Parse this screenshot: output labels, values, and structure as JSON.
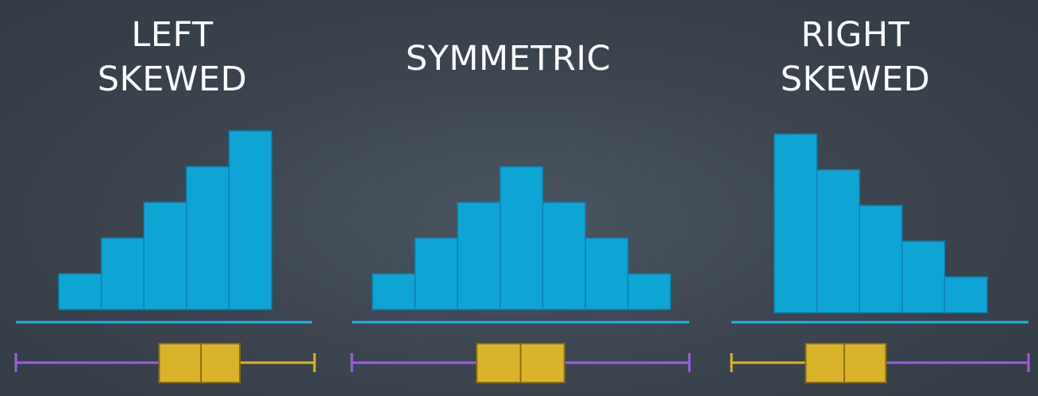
{
  "chart_data": [
    {
      "type": "bar",
      "title_lines": [
        "LEFT",
        "SKEWED"
      ],
      "values": [
        1,
        2,
        3,
        4,
        5
      ],
      "accent": "#0ea5d4",
      "boxplot": {
        "min": 0.0,
        "q1": 0.48,
        "median": 0.62,
        "q3": 0.75,
        "max": 1.0,
        "left_whisker_color": "#9b5de5",
        "right_whisker_color": "#d9b42a"
      }
    },
    {
      "type": "bar",
      "title_lines": [
        "SYMMETRIC"
      ],
      "values": [
        1,
        2,
        3,
        4,
        3,
        2,
        1
      ],
      "accent": "#0ea5d4",
      "boxplot": {
        "min": 0.0,
        "q1": 0.37,
        "median": 0.5,
        "q3": 0.63,
        "max": 1.0,
        "left_whisker_color": "#9b5de5",
        "right_whisker_color": "#9b5de5"
      }
    },
    {
      "type": "bar",
      "title_lines": [
        "RIGHT",
        "SKEWED"
      ],
      "values": [
        5,
        4,
        3,
        2,
        1
      ],
      "accent": "#0ea5d4",
      "boxplot": {
        "min": 0.0,
        "q1": 0.25,
        "median": 0.38,
        "q3": 0.52,
        "max": 1.0,
        "left_whisker_color": "#d9b42a",
        "right_whisker_color": "#9b5de5"
      }
    }
  ],
  "colors": {
    "bar_fill": "#0ea5d4",
    "bar_edge": "#0e7fb0",
    "baseline": "#1fb3e0",
    "box_fill": "#d9b42a",
    "box_edge": "#8a6d12",
    "title": "#ffffff"
  }
}
